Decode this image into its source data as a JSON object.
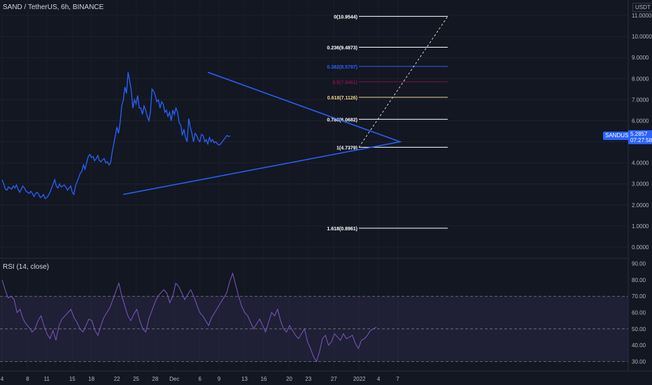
{
  "header": {
    "title": "SAND / TetherUS, 6h, BINANCE",
    "currency": "USDT"
  },
  "rsi": {
    "title": "RSI (14, close)",
    "band_upper": 70,
    "band_lower": 30,
    "mid": 50,
    "ylim": [
      25,
      92
    ],
    "ticks": [
      "90.00",
      "80.00",
      "70.00",
      "60.00",
      "50.00",
      "40.00",
      "30.00"
    ],
    "tick_values": [
      90,
      80,
      70,
      60,
      50,
      40,
      30
    ],
    "values": [
      80,
      74,
      69,
      70,
      68,
      60,
      62,
      56,
      53,
      51,
      48,
      50,
      55,
      58,
      52,
      47,
      44,
      49,
      43,
      52,
      56,
      58,
      60,
      62,
      57,
      54,
      50,
      48,
      52,
      56,
      55,
      49,
      46,
      52,
      57,
      60,
      63,
      68,
      73,
      78,
      70,
      64,
      58,
      55,
      59,
      62,
      55,
      50,
      48,
      56,
      61,
      66,
      70,
      72,
      74,
      72,
      66,
      70,
      78,
      76,
      72,
      68,
      71,
      74,
      70,
      65,
      60,
      58,
      55,
      52,
      57,
      60,
      63,
      66,
      69,
      72,
      79,
      84,
      77,
      70,
      64,
      60,
      58,
      54,
      50,
      53,
      56,
      52,
      48,
      54,
      60,
      58,
      62,
      55,
      50,
      48,
      52,
      49,
      46,
      44,
      47,
      50,
      42,
      38,
      33,
      30,
      36,
      44,
      46,
      40,
      42,
      47,
      45,
      43,
      47,
      44,
      45,
      46,
      41,
      38,
      43,
      44,
      46,
      49,
      50,
      51
    ]
  },
  "price_panel": {
    "ylim": [
      -0.4,
      11.4
    ],
    "ticks": [
      "11.0000",
      "10.0000",
      "9.0000",
      "8.0000",
      "7.0000",
      "6.0000",
      "5.0000",
      "4.0000",
      "3.0000",
      "2.0000",
      "1.0000",
      "0.0000"
    ],
    "tick_values": [
      11,
      10,
      9,
      8,
      7,
      6,
      5,
      4,
      3,
      2,
      1,
      0
    ],
    "symbol": "SANDUSDT",
    "last_price": "5.2857",
    "countdown": "07:27:58",
    "last_value": 5.2857
  },
  "x_axis": {
    "labels": [
      "4",
      "8",
      "11",
      "15",
      "18",
      "22",
      "25",
      "28",
      "Dec",
      "6",
      "9",
      "13",
      "16",
      "20",
      "23",
      "27",
      "2022",
      "4",
      "7"
    ],
    "bars_per_label": [
      0,
      16,
      28,
      44,
      56,
      72,
      84,
      96,
      108,
      124,
      136,
      152,
      164,
      180,
      192,
      208,
      224,
      236,
      248
    ]
  },
  "fib_levels": [
    {
      "label": "0(10.9544)",
      "value": 10.9544,
      "color": "#ffffff"
    },
    {
      "label": "0.236(9.4873)",
      "value": 9.4873,
      "color": "#ffffff"
    },
    {
      "label": "0.382(8.5797)",
      "value": 8.5797,
      "color": "#2962ff"
    },
    {
      "label": "0.5(7.8461)",
      "value": 7.8461,
      "color": "#880e4f"
    },
    {
      "label": "0.618(7.1126)",
      "value": 7.1126,
      "color": "#f0d77c"
    },
    {
      "label": "0.786(6.0682)",
      "value": 6.0682,
      "color": "#ffffff"
    },
    {
      "label": "1(4.7379)",
      "value": 4.7379,
      "color": "#ffffff"
    },
    {
      "label": "1.618(0.8961)",
      "value": 0.8961,
      "color": "#ffffff"
    }
  ],
  "chart_data": {
    "type": "line",
    "title": "SAND / TetherUS, 6h, BINANCE",
    "ylabel": "USDT",
    "series": [
      {
        "name": "SANDUSDT",
        "color": "#2962ff",
        "values": [
          3.2,
          3.0,
          2.75,
          2.7,
          2.85,
          2.8,
          2.75,
          2.9,
          2.8,
          2.95,
          2.75,
          2.6,
          2.75,
          2.9,
          2.8,
          2.65,
          2.6,
          2.55,
          2.65,
          2.55,
          2.4,
          2.55,
          2.6,
          2.5,
          2.35,
          2.4,
          2.5,
          2.3,
          2.35,
          2.45,
          2.6,
          2.8,
          3.0,
          3.2,
          2.9,
          2.8,
          3.0,
          2.85,
          2.9,
          2.95,
          2.85,
          2.7,
          2.8,
          2.9,
          2.6,
          2.5,
          2.9,
          3.1,
          3.3,
          3.5,
          3.6,
          3.9,
          3.7,
          4.0,
          4.3,
          4.4,
          4.25,
          4.3,
          4.1,
          4.2,
          4.35,
          4.1,
          4.05,
          4.15,
          4.2,
          4.0,
          4.05,
          3.9,
          4.0,
          4.5,
          4.9,
          5.3,
          5.7,
          5.4,
          5.9,
          6.7,
          7.0,
          7.6,
          7.3,
          8.3,
          7.9,
          7.4,
          6.6,
          7.0,
          6.8,
          7.2,
          6.6,
          6.6,
          6.3,
          6.7,
          6.5,
          6.2,
          6.0,
          6.4,
          7.5,
          7.4,
          7.2,
          6.9,
          7.0,
          6.6,
          6.9,
          6.8,
          6.4,
          6.5,
          6.2,
          6.4,
          6.0,
          6.5,
          6.3,
          6.6,
          6.4,
          5.9,
          5.8,
          5.3,
          5.6,
          5.2,
          5.0,
          6.1,
          5.7,
          5.4,
          5.0,
          5.4,
          5.3,
          5.1,
          5.0,
          5.35,
          5.3,
          5.0,
          5.1,
          4.9,
          5.2,
          5.0,
          5.1,
          4.95,
          5.0,
          4.9,
          4.85,
          4.9,
          5.0,
          5.1,
          5.2,
          5.3,
          5.25,
          5.28
        ]
      }
    ],
    "triangle": {
      "apex": 5.0,
      "lower_start": 2.5,
      "upper_start": 8.3
    },
    "projection_target": 10.9544,
    "ylim": [
      -0.4,
      11.4
    ]
  }
}
